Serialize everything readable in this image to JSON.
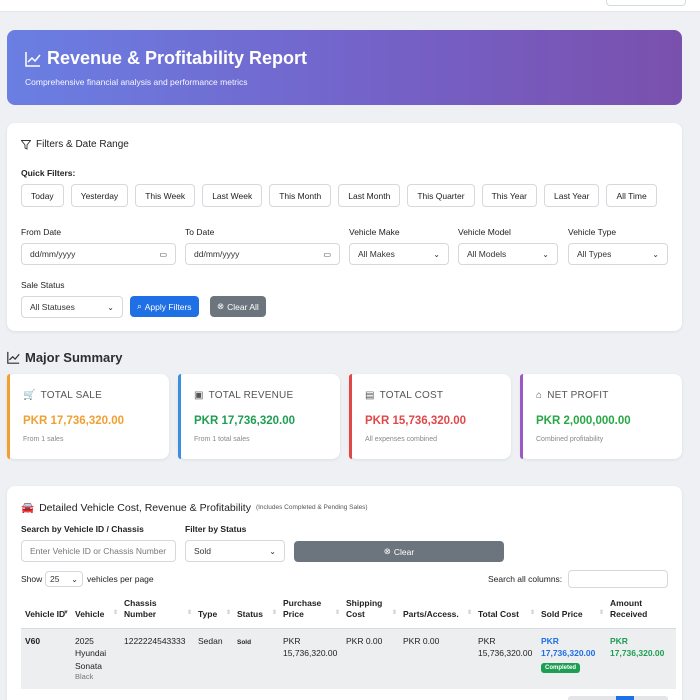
{
  "hero": {
    "title": "Revenue & Profitability Report",
    "subtitle": "Comprehensive financial analysis and performance metrics"
  },
  "filters": {
    "title": "Filters & Date Range",
    "quick_label": "Quick Filters:",
    "quick": [
      "Today",
      "Yesterday",
      "This Week",
      "Last Week",
      "This Month",
      "Last Month",
      "This Quarter",
      "This Year",
      "Last Year",
      "All Time"
    ],
    "from_label": "From Date",
    "from_placeholder": "dd/mm/yyyy",
    "to_label": "To Date",
    "to_placeholder": "dd/mm/yyyy",
    "make_label": "Vehicle Make",
    "make_value": "All Makes",
    "model_label": "Vehicle Model",
    "model_value": "All Models",
    "type_label": "Vehicle Type",
    "type_value": "All Types",
    "status_label": "Sale Status",
    "status_value": "All Statuses",
    "apply": "Apply Filters",
    "clear": "Clear All"
  },
  "summary": {
    "title": "Major Summary",
    "cards": [
      {
        "label": "TOTAL SALE",
        "value": "PKR 17,736,320.00",
        "note": "From 1 sales",
        "color": "#f0a030"
      },
      {
        "label": "TOTAL REVENUE",
        "value": "PKR 17,736,320.00",
        "note": "From 1 total sales",
        "color": "#1e9e52"
      },
      {
        "label": "TOTAL COST",
        "value": "PKR 15,736,320.00",
        "note": "All expenses combined",
        "color": "#e04848"
      },
      {
        "label": "NET PROFIT",
        "value": "PKR 2,000,000.00",
        "note": "Combined profitability",
        "color": "#28a745"
      }
    ]
  },
  "detail": {
    "title": "Detailed Vehicle Cost, Revenue & Profitability",
    "title_note": "(Includes Completed & Pending Sales)",
    "search_label": "Search by Vehicle ID / Chassis",
    "search_placeholder": "Enter Vehicle ID or Chassis Number",
    "status_label": "Filter by Status",
    "status_value": "Sold",
    "clear": "Clear",
    "show_label": "Show",
    "show_value": "25",
    "per_page": "vehicles per page",
    "search_all": "Search all columns:",
    "columns": [
      "Vehicle ID",
      "Vehicle",
      "Chassis Number",
      "Type",
      "Status",
      "Purchase Price",
      "Shipping Cost",
      "Parts/Access.",
      "Total Cost",
      "Sold Price",
      "Amount Received"
    ],
    "row": {
      "id": "V60",
      "vehicle": "2025 Hyundai Sonata",
      "color": "Black",
      "chassis": "1222224543333",
      "type": "Sedan",
      "status": "Sold",
      "purchase": "PKR 15,736,320.00",
      "shipping": "PKR 0.00",
      "parts": "PKR 0.00",
      "total": "PKR 15,736,320.00",
      "sold": "PKR 17,736,320.00",
      "sold_badge": "Completed",
      "received": "PKR 17,736,320.00"
    }
  }
}
